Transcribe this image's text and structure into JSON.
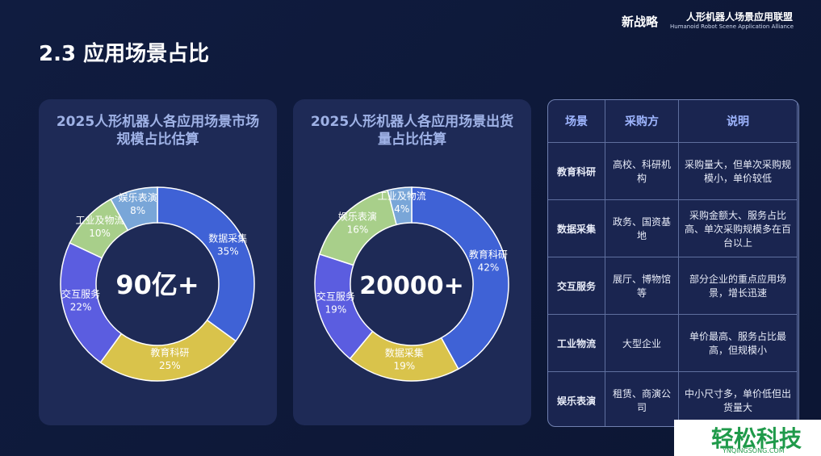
{
  "header": {
    "title": "2.3 应用场景占比",
    "brand": "新战略",
    "alliance": "人形机器人场景应用联盟",
    "alliance_en": "Humanoid Robot Scene Application Alliance"
  },
  "chart_data": [
    {
      "type": "donut",
      "title": "2025人形机器人各应用场景市场规模占比估算",
      "center_label": "90亿+",
      "categories": [
        "数据采集",
        "教育科研",
        "交互服务",
        "工业及物流",
        "娱乐表演"
      ],
      "values": [
        35,
        25,
        22,
        10,
        8
      ],
      "value_labels": [
        "35%",
        "25%",
        "22%",
        "10%",
        "8%"
      ],
      "colors": [
        "#3f62d6",
        "#d9c34b",
        "#5b5de0",
        "#a8cf8a",
        "#79a6d8"
      ]
    },
    {
      "type": "donut",
      "title": "2025人形机器人各应用场景出货量占比估算",
      "center_label": "20000+",
      "categories": [
        "教育科研",
        "数据采集",
        "交互服务",
        "娱乐表演",
        "工业及物流"
      ],
      "values": [
        42,
        19,
        19,
        16,
        4
      ],
      "value_labels": [
        "42%",
        "19%",
        "19%",
        "16%",
        "4%"
      ],
      "colors": [
        "#3f62d6",
        "#d9c34b",
        "#5b5de0",
        "#a8cf8a",
        "#79a6d8"
      ]
    }
  ],
  "table": {
    "headers": [
      "场景",
      "采购方",
      "说明"
    ],
    "rows": [
      [
        "教育科研",
        "高校、科研机构",
        "采购量大，但单次采购规模小，单价较低"
      ],
      [
        "数据采集",
        "政务、国资基地",
        "采购金额大、服务占比高、单次采购规模多在百台以上"
      ],
      [
        "交互服务",
        "展厅、博物馆等",
        "部分企业的重点应用场景，增长迅速"
      ],
      [
        "工业物流",
        "大型企业",
        "单价最高、服务占比最高，但规模小"
      ],
      [
        "娱乐表演",
        "租赁、商演公司",
        "中小尺寸多，单价低但出货量大"
      ]
    ]
  },
  "watermark": {
    "name": "轻松科技",
    "url": "YNQINGSONG.COM"
  }
}
